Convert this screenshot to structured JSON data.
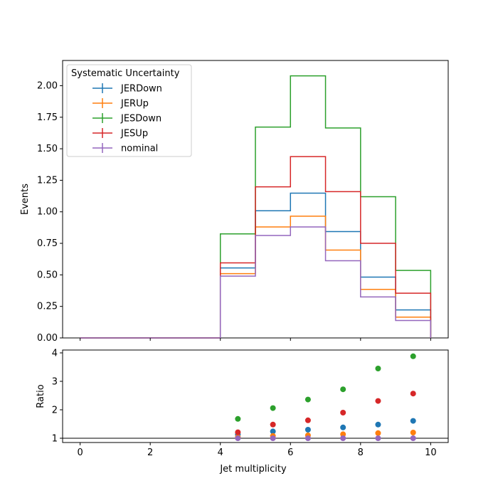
{
  "chart_data": [
    {
      "type": "line",
      "step": "histogram",
      "xlabel": "",
      "ylabel": "Events",
      "xlim": [
        -0.5,
        10.5
      ],
      "ylim": [
        0,
        2.2
      ],
      "xticks": [
        0,
        2,
        4,
        6,
        8,
        10
      ],
      "xtick_labels_shown": false,
      "yticks": [
        "0.00",
        "0.25",
        "0.50",
        "0.75",
        "1.00",
        "1.25",
        "1.50",
        "1.75",
        "2.00"
      ],
      "bin_edges": [
        0,
        1,
        2,
        3,
        4,
        5,
        6,
        7,
        8,
        9,
        10
      ],
      "grid": false,
      "legend": {
        "title": "Systematic Uncertainty",
        "placement": "upper-left"
      },
      "series": [
        {
          "name": "JERDown",
          "color": "#1f77b4",
          "values": [
            0,
            0,
            0,
            0,
            0.555,
            1.008,
            1.148,
            0.843,
            0.482,
            0.222
          ]
        },
        {
          "name": "JERUp",
          "color": "#ff7f0e",
          "values": [
            0,
            0,
            0,
            0,
            0.51,
            0.88,
            0.965,
            0.697,
            0.385,
            0.165
          ]
        },
        {
          "name": "JESDown",
          "color": "#2ca02c",
          "values": [
            0,
            0,
            0,
            0,
            0.825,
            1.672,
            2.078,
            1.665,
            1.12,
            0.535
          ]
        },
        {
          "name": "JESUp",
          "color": "#d62728",
          "values": [
            0,
            0,
            0,
            0,
            0.595,
            1.198,
            1.438,
            1.16,
            0.75,
            0.355
          ]
        },
        {
          "name": "nominal",
          "color": "#9467bd",
          "values": [
            0,
            0,
            0,
            0,
            0.49,
            0.812,
            0.88,
            0.612,
            0.325,
            0.138
          ]
        }
      ]
    },
    {
      "type": "scatter",
      "xlabel": "Jet multiplicity",
      "ylabel": "Ratio",
      "xlim": [
        -0.5,
        10.5
      ],
      "ylim": [
        0.85,
        4.1
      ],
      "xticks": [
        "0",
        "2",
        "4",
        "6",
        "8",
        "10"
      ],
      "yticks": [
        "1",
        "2",
        "3",
        "4"
      ],
      "reference_line": 1,
      "x": [
        4.5,
        5.5,
        6.5,
        7.5,
        8.5,
        9.5
      ],
      "series": [
        {
          "name": "JERDown",
          "color": "#1f77b4",
          "values": [
            1.13,
            1.24,
            1.3,
            1.38,
            1.48,
            1.61
          ]
        },
        {
          "name": "JERUp",
          "color": "#ff7f0e",
          "values": [
            1.04,
            1.08,
            1.1,
            1.14,
            1.18,
            1.2
          ]
        },
        {
          "name": "JESDown",
          "color": "#2ca02c",
          "values": [
            1.68,
            2.06,
            2.36,
            2.72,
            3.45,
            3.88
          ]
        },
        {
          "name": "JESUp",
          "color": "#d62728",
          "values": [
            1.21,
            1.48,
            1.63,
            1.9,
            2.31,
            2.57
          ]
        },
        {
          "name": "nominal",
          "color": "#9467bd",
          "values": [
            1,
            1,
            1,
            1,
            1,
            1
          ]
        }
      ]
    }
  ]
}
